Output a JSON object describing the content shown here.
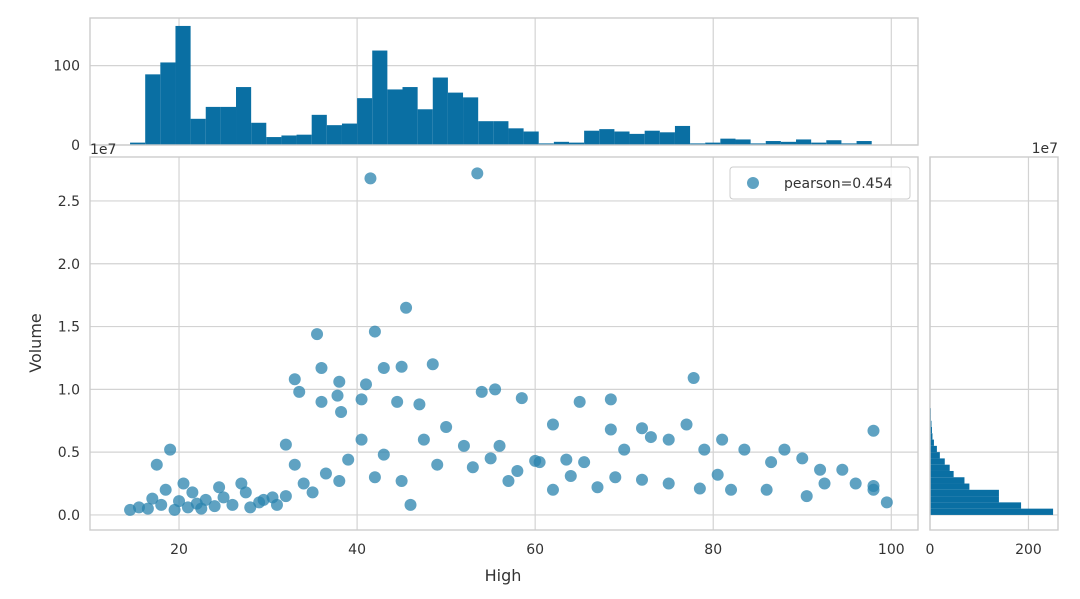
{
  "colors": {
    "bar": "#0a6fa3",
    "point": "#2a83ad",
    "grid": "#d3d3d3",
    "frame": "#cccccc",
    "text": "#333333"
  },
  "chart_data": {
    "type": "scatter",
    "xlabel": "High",
    "ylabel": "Volume",
    "y_offset_label": "1e7",
    "right_hist_offset_label": "1e7",
    "top_hist_offset_label": "1e7",
    "xlim": [
      10,
      103
    ],
    "ylim": [
      -0.12,
      2.85
    ],
    "x_ticks": [
      20,
      40,
      60,
      80,
      100
    ],
    "y_ticks": [
      0.0,
      0.5,
      1.0,
      1.5,
      2.0,
      2.5
    ],
    "y_tick_labels": [
      "0.0",
      "0.5",
      "1.0",
      "1.5",
      "2.0",
      "2.5"
    ],
    "legend": {
      "label": "pearson=0.454",
      "placement": "top-right"
    },
    "grid": true,
    "top_hist": {
      "ylim": [
        0,
        160
      ],
      "y_ticks": [
        0,
        100
      ],
      "bin_edges_start": 14.5,
      "bin_width": 1.7,
      "counts": [
        3,
        89,
        104,
        150,
        33,
        48,
        48,
        73,
        28,
        10,
        12,
        13,
        38,
        25,
        27,
        59,
        119,
        70,
        73,
        45,
        85,
        66,
        60,
        30,
        30,
        21,
        17,
        2,
        4,
        3,
        18,
        20,
        17,
        14,
        18,
        16,
        24,
        2,
        3,
        8,
        7,
        2,
        5,
        4,
        7,
        3,
        6,
        2,
        5
      ]
    },
    "right_hist": {
      "xlim": [
        0,
        260
      ],
      "x_ticks": [
        0,
        200
      ],
      "bin_edges_start": 0.0,
      "bin_width": 0.05,
      "counts": [
        250,
        185,
        140,
        140,
        80,
        70,
        48,
        40,
        30,
        20,
        14,
        8,
        5,
        4,
        3,
        2,
        2,
        1,
        1,
        0,
        1,
        0,
        1,
        0
      ]
    },
    "points": [
      [
        41.5,
        2.68
      ],
      [
        53.5,
        2.72
      ],
      [
        45.5,
        1.65
      ],
      [
        35.5,
        1.44
      ],
      [
        42.0,
        1.46
      ],
      [
        43.0,
        1.17
      ],
      [
        45.0,
        1.18
      ],
      [
        48.5,
        1.2
      ],
      [
        36.0,
        1.17
      ],
      [
        41.0,
        1.04
      ],
      [
        33.0,
        1.08
      ],
      [
        38.0,
        1.06
      ],
      [
        33.5,
        0.98
      ],
      [
        37.8,
        0.95
      ],
      [
        38.2,
        0.82
      ],
      [
        36.0,
        0.9
      ],
      [
        40.5,
        0.92
      ],
      [
        44.5,
        0.9
      ],
      [
        47.0,
        0.88
      ],
      [
        54.0,
        0.98
      ],
      [
        55.5,
        1.0
      ],
      [
        58.5,
        0.93
      ],
      [
        65.0,
        0.9
      ],
      [
        68.5,
        0.92
      ],
      [
        77.8,
        1.09
      ],
      [
        62.0,
        0.72
      ],
      [
        72.0,
        0.69
      ],
      [
        68.5,
        0.68
      ],
      [
        77.0,
        0.72
      ],
      [
        98.0,
        0.67
      ],
      [
        32.0,
        0.56
      ],
      [
        19.0,
        0.52
      ],
      [
        17.5,
        0.4
      ],
      [
        56.0,
        0.55
      ],
      [
        60.0,
        0.43
      ],
      [
        63.5,
        0.44
      ],
      [
        65.5,
        0.42
      ],
      [
        70.0,
        0.52
      ],
      [
        73.0,
        0.62
      ],
      [
        75.0,
        0.6
      ],
      [
        79.0,
        0.52
      ],
      [
        81.0,
        0.6
      ],
      [
        83.5,
        0.52
      ],
      [
        86.5,
        0.42
      ],
      [
        88.0,
        0.52
      ],
      [
        90.0,
        0.45
      ],
      [
        92.0,
        0.36
      ],
      [
        94.5,
        0.36
      ],
      [
        96.0,
        0.25
      ],
      [
        98.0,
        0.23
      ],
      [
        99.5,
        0.1
      ],
      [
        98.0,
        0.2
      ],
      [
        92.5,
        0.25
      ],
      [
        90.5,
        0.15
      ],
      [
        86.0,
        0.2
      ],
      [
        82.0,
        0.2
      ],
      [
        80.5,
        0.32
      ],
      [
        78.5,
        0.21
      ],
      [
        75.0,
        0.25
      ],
      [
        72.0,
        0.28
      ],
      [
        69.0,
        0.3
      ],
      [
        67.0,
        0.22
      ],
      [
        64.0,
        0.31
      ],
      [
        62.0,
        0.2
      ],
      [
        60.5,
        0.42
      ],
      [
        58.0,
        0.35
      ],
      [
        57.0,
        0.27
      ],
      [
        55.0,
        0.45
      ],
      [
        53.0,
        0.38
      ],
      [
        52.0,
        0.55
      ],
      [
        50.0,
        0.7
      ],
      [
        49.0,
        0.4
      ],
      [
        47.5,
        0.6
      ],
      [
        46.0,
        0.08
      ],
      [
        45.0,
        0.27
      ],
      [
        43.0,
        0.48
      ],
      [
        42.0,
        0.3
      ],
      [
        40.5,
        0.6
      ],
      [
        39.0,
        0.44
      ],
      [
        38.0,
        0.27
      ],
      [
        36.5,
        0.33
      ],
      [
        35.0,
        0.18
      ],
      [
        34.0,
        0.25
      ],
      [
        33.0,
        0.4
      ],
      [
        32.0,
        0.15
      ],
      [
        30.5,
        0.14
      ],
      [
        29.0,
        0.1
      ],
      [
        27.5,
        0.18
      ],
      [
        26.0,
        0.08
      ],
      [
        25.0,
        0.14
      ],
      [
        24.0,
        0.07
      ],
      [
        23.0,
        0.12
      ],
      [
        22.0,
        0.09
      ],
      [
        21.0,
        0.06
      ],
      [
        20.0,
        0.11
      ],
      [
        19.5,
        0.04
      ],
      [
        18.5,
        0.2
      ],
      [
        18.0,
        0.08
      ],
      [
        17.0,
        0.13
      ],
      [
        16.5,
        0.05
      ],
      [
        15.5,
        0.06
      ],
      [
        14.5,
        0.04
      ],
      [
        21.5,
        0.18
      ],
      [
        22.5,
        0.05
      ],
      [
        27.0,
        0.25
      ],
      [
        28.0,
        0.06
      ],
      [
        29.5,
        0.12
      ],
      [
        31.0,
        0.08
      ],
      [
        24.5,
        0.22
      ],
      [
        20.5,
        0.25
      ]
    ]
  }
}
